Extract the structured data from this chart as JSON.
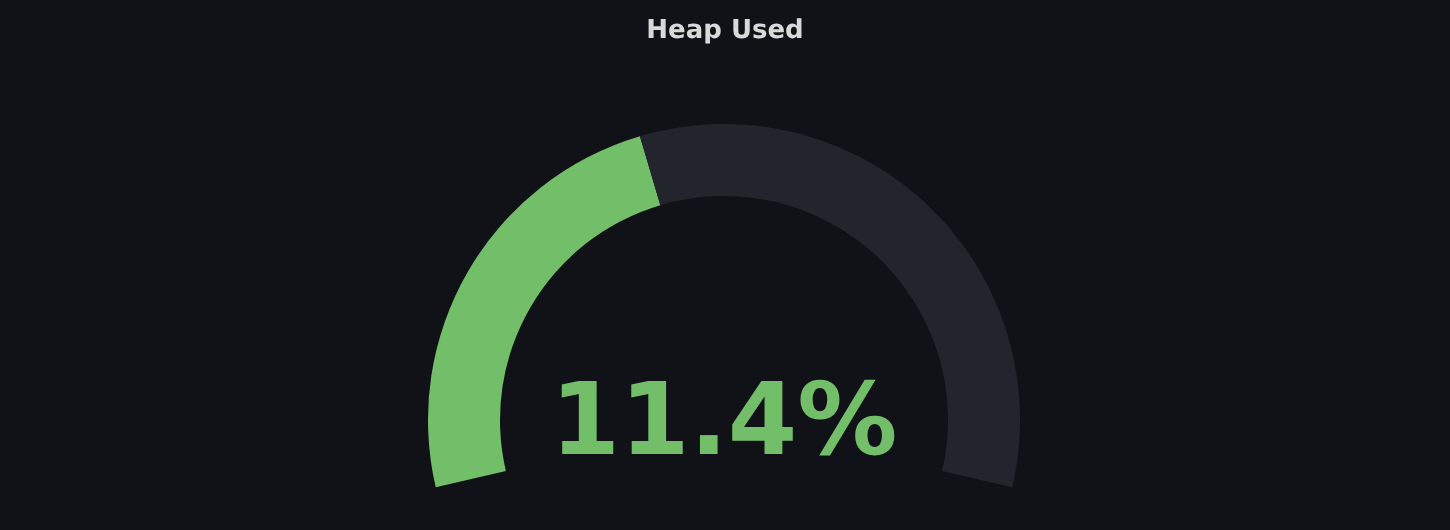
{
  "chart_data": {
    "type": "donut",
    "title": "Heap Used",
    "categories": [
      null,
      null
    ],
    "values": [
      42,
      58
    ],
    "colors": [
      "#73bf69",
      "#22252b"
    ],
    "annotations": [
      "11.4%"
    ],
    "legend": false
  }
}
